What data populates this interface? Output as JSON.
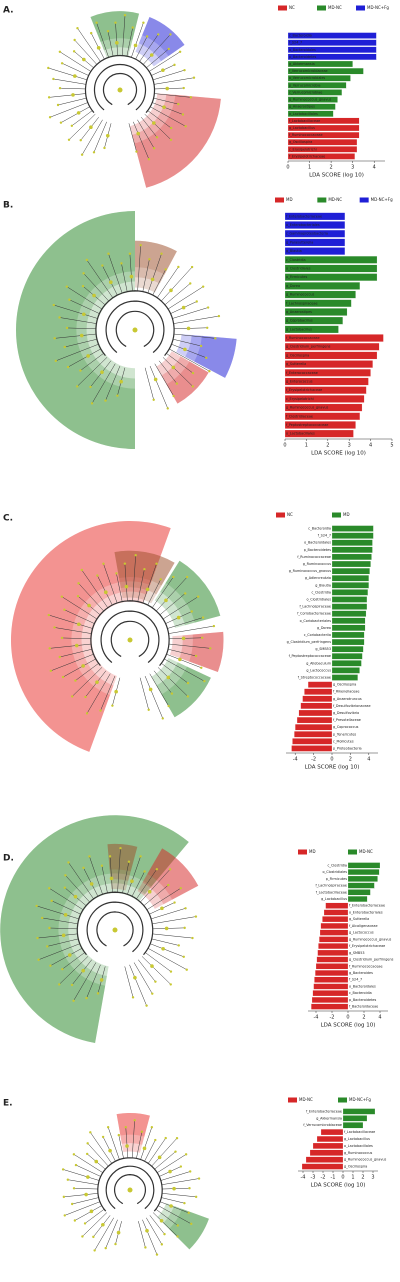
{
  "chart_data": [
    {
      "type": "lda_bar",
      "panel_label": "A.",
      "x_label": "LDA SCORE (log 10)",
      "xlim": [
        0,
        4.5
      ],
      "xticks": [
        0,
        1,
        2,
        3,
        4
      ],
      "categories": [
        "c_Bacteroidia",
        "f_S24_7",
        "o_Bacteroidales",
        "p_Bacteroidetes",
        "g_Akkermansia",
        "f_Verrucomicrobiaceae",
        "o_Verrucomicrobiales",
        "p_Verrucomicrobia",
        "c_Verrucomicrobiae",
        "g_Ruminococcus_gnavus",
        "g_Anaerostipes",
        "o_Lactobacillales",
        "f_Lactobacillaceae",
        "g_Lactobacillus",
        "f_Ruminococcaceae",
        "g_Oscillospira",
        "c_Erysipelotrichi",
        "f_Erysipelotrichaceae"
      ],
      "series": [
        {
          "name": "NC",
          "color": "#d62728",
          "values": [
            null,
            null,
            null,
            null,
            null,
            null,
            null,
            null,
            null,
            null,
            null,
            null,
            3.3,
            3.3,
            3.3,
            3.2,
            3.2,
            3.1
          ]
        },
        {
          "name": "MD-NC",
          "color": "#2a8a2a",
          "values": [
            null,
            null,
            null,
            null,
            3.0,
            3.5,
            2.9,
            2.7,
            2.5,
            2.3,
            2.2,
            2.1,
            null,
            null,
            null,
            null,
            null,
            null
          ]
        },
        {
          "name": "MD-NC+Fg",
          "color": "#1f1fd6",
          "values": [
            4.1,
            4.1,
            4.1,
            4.1,
            null,
            null,
            null,
            null,
            null,
            null,
            null,
            null,
            null,
            null,
            null,
            null,
            null,
            null
          ]
        }
      ]
    },
    {
      "type": "lda_bar",
      "panel_label": "B.",
      "x_label": "LDA SCORE (log 10)",
      "xlim": [
        0,
        5
      ],
      "xticks": [
        0,
        1,
        2,
        3,
        4,
        5
      ],
      "categories": [
        "f_Enterobacteriaceae",
        "o_Enterobacteriales",
        "c_Gammaproteobacteria",
        "g_Parasutterella",
        "g_Blautia",
        "c_Clostridia",
        "o_Clostridiales",
        "p_Firmicutes",
        "g_Dorea",
        "g_Ruminococcus",
        "f_Lachnospiraceae",
        "g_Anaerostipes",
        "g_Coprobacillus",
        "g_Lactobacillus",
        "f_Ruminococcaceae",
        "g_Clostridium_perfringens",
        "g_Oscillospira",
        "g_Sutterella",
        "f_Enterococcaceae",
        "g_Enterococcus",
        "f_Erysipelotrichaceae",
        "c_Erysipelotrichi",
        "g_Ruminococcus_gnavus",
        "f_Clostridiaceae",
        "f_Peptostreptococcaceae",
        "o_Lactobacillales"
      ],
      "series": [
        {
          "name": "MD",
          "color": "#d62728",
          "values": [
            null,
            null,
            null,
            null,
            null,
            null,
            null,
            null,
            null,
            null,
            null,
            null,
            null,
            null,
            4.6,
            4.4,
            4.3,
            4.1,
            4.0,
            3.9,
            3.8,
            3.7,
            3.6,
            3.5,
            3.3,
            3.2
          ]
        },
        {
          "name": "MD-NC",
          "color": "#2a8a2a",
          "values": [
            null,
            null,
            null,
            null,
            null,
            4.3,
            4.3,
            4.3,
            3.5,
            3.3,
            3.1,
            2.9,
            2.7,
            2.5,
            null,
            null,
            null,
            null,
            null,
            null,
            null,
            null,
            null,
            null,
            null,
            null
          ]
        },
        {
          "name": "MD-NC+Fg",
          "color": "#1f1fd6",
          "values": [
            2.8,
            2.8,
            2.8,
            2.8,
            2.8,
            null,
            null,
            null,
            null,
            null,
            null,
            null,
            null,
            null,
            null,
            null,
            null,
            null,
            null,
            null,
            null,
            null,
            null,
            null,
            null,
            null
          ]
        }
      ]
    },
    {
      "type": "lda_bar",
      "panel_label": "C.",
      "x_label": "LDA SCORE (log 10)",
      "xlim": [
        -5,
        5
      ],
      "xticks": [
        -4,
        -2,
        0,
        2,
        4
      ],
      "categories": [
        "c_Bacteroidia",
        "f_S24_7",
        "o_Bacteroidales",
        "p_Bacteroidetes",
        "f_Ruminococcaceae",
        "g_Ruminococcus",
        "g_Ruminococcus_gnavus",
        "g_Adlercreutzia",
        "g_Blautia",
        "c_Clostridia",
        "o_Clostridiales",
        "f_Lachnospiraceae",
        "f_Coriobacteriaceae",
        "o_Coriobacteriales",
        "g_Dorea",
        "c_Coriobacteriia",
        "g_Clostridium_perfringens",
        "g_SMB53",
        "f_Peptostreptococcaceae",
        "g_Allobaculum",
        "g_Lactococcus",
        "f_Streptococcaceae",
        "g_Oscillospira",
        "f_Rikenellaceae",
        "g_Anaerotruncus",
        "f_Desulfovibrionaceae",
        "g_Desulfovibrio",
        "f_Prevotellaceae",
        "g_Coprococcus",
        "p_Tenericutes",
        "c_Mollicutes",
        "p_Proteobacteria"
      ],
      "series": [
        {
          "name": "NC",
          "color": "#d62728",
          "values": [
            null,
            null,
            null,
            null,
            null,
            null,
            null,
            null,
            null,
            null,
            null,
            null,
            null,
            null,
            null,
            null,
            null,
            null,
            null,
            null,
            null,
            null,
            -2.6,
            -3.0,
            -3.2,
            -3.4,
            -3.6,
            -3.8,
            -4.0,
            -4.1,
            -4.3,
            -4.4
          ]
        },
        {
          "name": "MD",
          "color": "#2a8a2a",
          "values": [
            4.5,
            4.5,
            4.4,
            4.4,
            4.3,
            4.2,
            4.1,
            4.0,
            4.0,
            3.9,
            3.8,
            3.8,
            3.7,
            3.6,
            3.6,
            3.5,
            3.5,
            3.4,
            3.3,
            3.2,
            3.0,
            2.8,
            null,
            null,
            null,
            null,
            null,
            null,
            null,
            null,
            null,
            null
          ]
        }
      ]
    },
    {
      "type": "lda_bar",
      "panel_label": "D.",
      "x_label": "LDA SCORE (log 10)",
      "xlim": [
        -5,
        5
      ],
      "xticks": [
        -4,
        -2,
        0,
        2,
        4
      ],
      "categories": [
        "c_Clostridia",
        "o_Clostridiales",
        "p_Firmicutes",
        "f_Lachnospiraceae",
        "f_Lactobacillaceae",
        "g_Lactobacillus",
        "f_Enterobacteriaceae",
        "o_Enterobacteriales",
        "g_Sutterella",
        "f_Alcaligenaceae",
        "g_Lactococcus",
        "g_Ruminococcus_gnavus",
        "f_Erysipelotrichaceae",
        "g_SMB53",
        "g_Clostridium_perfringens",
        "f_Ruminococcaceae",
        "g_Bacteroides",
        "f_S24_7",
        "o_Bacteroidales",
        "c_Bacteroidia",
        "p_Bacteroidetes",
        "f_Bacteroidaceae"
      ],
      "series": [
        {
          "name": "MD",
          "color": "#d62728",
          "values": [
            null,
            null,
            null,
            null,
            null,
            null,
            -2.8,
            -3.0,
            -3.2,
            -3.4,
            -3.5,
            -3.6,
            -3.7,
            -3.8,
            -3.9,
            -4.0,
            -4.1,
            -4.2,
            -4.3,
            -4.4,
            -4.5,
            -4.6
          ]
        },
        {
          "name": "MD-NC",
          "color": "#2a8a2a",
          "values": [
            4.0,
            3.9,
            3.7,
            3.3,
            2.8,
            2.4,
            null,
            null,
            null,
            null,
            null,
            null,
            null,
            null,
            null,
            null,
            null,
            null,
            null,
            null,
            null,
            null
          ]
        }
      ]
    },
    {
      "type": "lda_bar",
      "panel_label": "E.",
      "x_label": "LDA SCORE (log 10)",
      "xlim": [
        -4.5,
        3.5
      ],
      "xticks": [
        -4,
        -3,
        -2,
        -1,
        0,
        1,
        2,
        3
      ],
      "categories": [
        "f_Enterobacteriaceae",
        "g_Akkermansia",
        "f_Verrucomicrobiaceae",
        "f_Lactobacillaceae",
        "g_Lactobacillus",
        "o_Lactobacillales",
        "g_Ruminococcus",
        "g_Ruminococcus_gnavus",
        "g_Oscillospira"
      ],
      "series": [
        {
          "name": "MD-NC",
          "color": "#d62728",
          "values": [
            null,
            null,
            null,
            -2.2,
            -2.6,
            -3.0,
            -3.3,
            -3.7,
            -4.1
          ]
        },
        {
          "name": "MD-NC+Fg",
          "color": "#2a8a2a",
          "values": [
            3.2,
            2.4,
            2.0,
            null,
            null,
            null,
            null,
            null,
            null
          ]
        }
      ]
    }
  ]
}
